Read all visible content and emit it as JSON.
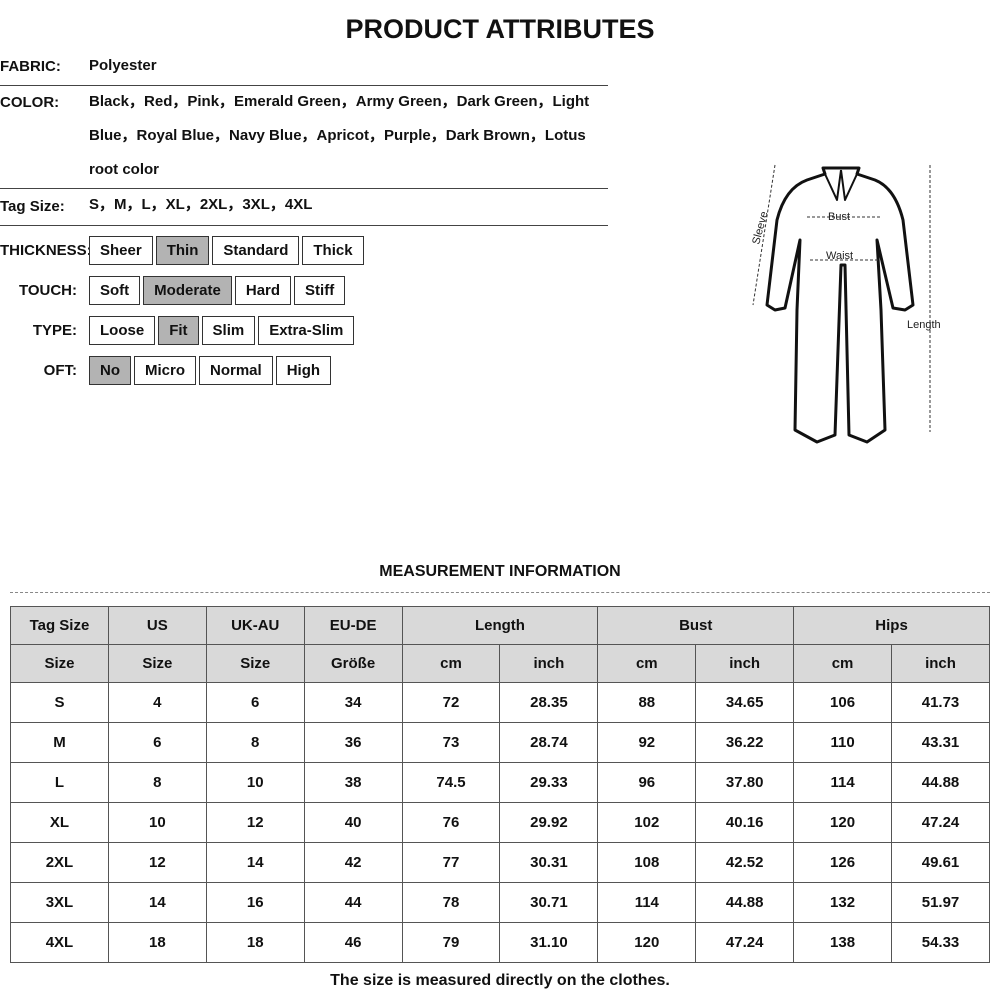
{
  "title": "PRODUCT ATTRIBUTES",
  "attributes": {
    "fabric_label": "FABRIC:",
    "fabric": "Polyester",
    "color_label": "COLOR:",
    "color": "Black，Red，Pink，Emerald Green，Army Green，Dark Green，Light Blue，Royal Blue，Navy Blue，Apricot，Purple，Dark Brown，Lotus root color",
    "tag_label": "Tag Size:",
    "tag": "S，M，L，XL，2XL，3XL，4XL"
  },
  "options": [
    {
      "label": "THICKNESS:",
      "items": [
        "Sheer",
        "Thin",
        "Standard",
        "Thick"
      ],
      "selected": "Thin"
    },
    {
      "label": "TOUCH:",
      "items": [
        "Soft",
        "Moderate",
        "Hard",
        "Stiff"
      ],
      "selected": "Moderate"
    },
    {
      "label": "TYPE:",
      "items": [
        "Loose",
        "Fit",
        "Slim",
        "Extra-Slim"
      ],
      "selected": "Fit"
    },
    {
      "label": "OFT:",
      "items": [
        "No",
        "Micro",
        "Normal",
        "High"
      ],
      "selected": "No"
    }
  ],
  "figure": {
    "bust": "Bust",
    "waist": "Waist",
    "sleeve": "Sleeve",
    "length": "Length"
  },
  "measurement_title": "MEASUREMENT INFORMATION",
  "table": {
    "header1": [
      "Tag Size",
      "US",
      "UK-AU",
      "EU-DE",
      "Length",
      "Bust",
      "Hips"
    ],
    "header2": [
      "Size",
      "Size",
      "Size",
      "Größe",
      "cm",
      "inch",
      "cm",
      "inch",
      "cm",
      "inch"
    ],
    "rows": [
      [
        "S",
        "4",
        "6",
        "34",
        "72",
        "28.35",
        "88",
        "34.65",
        "106",
        "41.73"
      ],
      [
        "M",
        "6",
        "8",
        "36",
        "73",
        "28.74",
        "92",
        "36.22",
        "110",
        "43.31"
      ],
      [
        "L",
        "8",
        "10",
        "38",
        "74.5",
        "29.33",
        "96",
        "37.80",
        "114",
        "44.88"
      ],
      [
        "XL",
        "10",
        "12",
        "40",
        "76",
        "29.92",
        "102",
        "40.16",
        "120",
        "47.24"
      ],
      [
        "2XL",
        "12",
        "14",
        "42",
        "77",
        "30.31",
        "108",
        "42.52",
        "126",
        "49.61"
      ],
      [
        "3XL",
        "14",
        "16",
        "44",
        "78",
        "30.71",
        "114",
        "44.88",
        "132",
        "51.97"
      ],
      [
        "4XL",
        "18",
        "18",
        "46",
        "79",
        "31.10",
        "120",
        "47.24",
        "138",
        "54.33"
      ]
    ]
  },
  "note": "The size is measured directly on the clothes."
}
